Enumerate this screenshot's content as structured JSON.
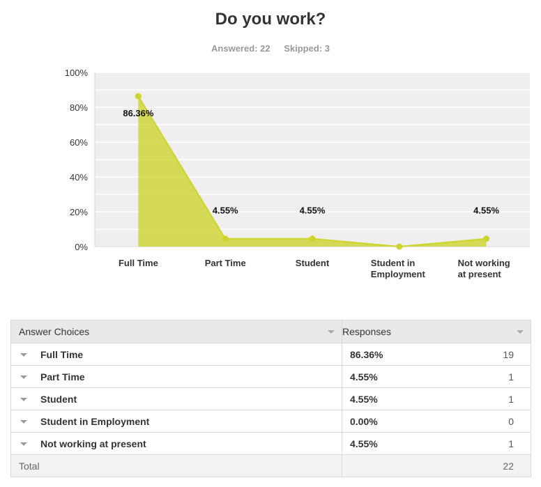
{
  "header": {
    "title": "Do you work?",
    "answered": "Answered: 22",
    "skipped": "Skipped: 3"
  },
  "chart_data": {
    "type": "area",
    "categories": [
      "Full Time",
      "Part Time",
      "Student",
      "Student in Employment",
      "Not working at present"
    ],
    "category_lines": [
      [
        "Full Time"
      ],
      [
        "Part Time"
      ],
      [
        "Student"
      ],
      [
        "Student in",
        "Employment"
      ],
      [
        "Not working",
        "at present"
      ]
    ],
    "values": [
      86.36,
      4.55,
      4.55,
      0.0,
      4.55
    ],
    "data_labels": [
      "86.36%",
      "4.55%",
      "4.55%",
      "",
      "4.55%"
    ],
    "yticks": [
      "0%",
      "20%",
      "40%",
      "60%",
      "80%",
      "100%"
    ],
    "ylim": [
      0,
      100
    ],
    "grid": true,
    "color": "#cdd42a"
  },
  "table": {
    "headers": {
      "choices": "Answer Choices",
      "responses": "Responses"
    },
    "rows": [
      {
        "choice": "Full Time",
        "percent": "86.36%",
        "count": "19"
      },
      {
        "choice": "Part Time",
        "percent": "4.55%",
        "count": "1"
      },
      {
        "choice": "Student",
        "percent": "4.55%",
        "count": "1"
      },
      {
        "choice": "Student in Employment",
        "percent": "0.00%",
        "count": "0"
      },
      {
        "choice": "Not working at present",
        "percent": "4.55%",
        "count": "1"
      }
    ],
    "total_label": "Total",
    "total_count": "22"
  }
}
